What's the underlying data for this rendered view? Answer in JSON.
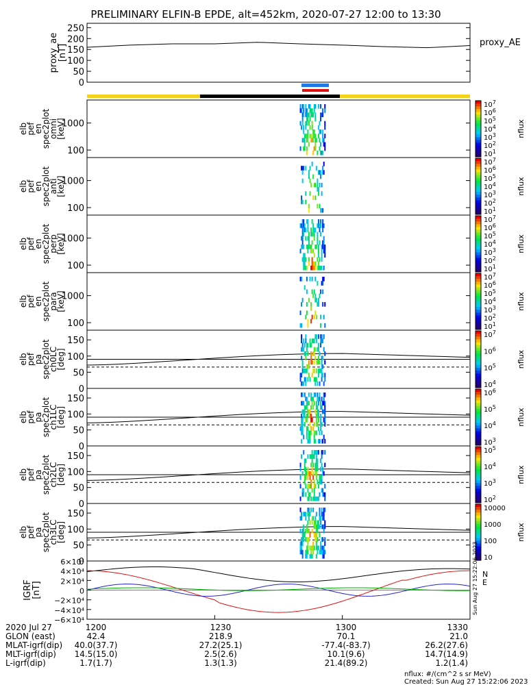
{
  "title": "PRELIMINARY ELFIN-B EPDE, alt=452km, 2020-07-27 12:00 to 13:30",
  "time_axis": {
    "ticks": [
      "1200",
      "1230",
      "1300",
      "1330"
    ],
    "rows": [
      {
        "label": "2020 Jul 27",
        "values": [
          "1200",
          "1230",
          "1300",
          "1330"
        ]
      },
      {
        "label": "GLON (east)",
        "values": [
          "42.4",
          "218.9",
          "70.1",
          "21.0"
        ]
      },
      {
        "label": "MLAT-igrf(dip)",
        "values": [
          "40.0(37.7)",
          "27.2(25.1)",
          "-77.4(-83.7)",
          "26.2(27.6)"
        ]
      },
      {
        "label": "MLT-igrf(dip)",
        "values": [
          "14.5(15.0)",
          "2.5(2.6)",
          "10.1(9.6)",
          "14.7(14.9)"
        ]
      },
      {
        "label": "L-igrf(dip)",
        "values": [
          "1.7(1.7)",
          "1.3(1.3)",
          "21.4(89.2)",
          "1.2(1.4)"
        ]
      }
    ]
  },
  "footer": {
    "units": "nflux: #/(cm^2 s sr MeV)",
    "created": "Created: Sun Aug 27 15:22:06 2023",
    "side_stamp": "Sun Aug 27 15:22:06 2023"
  },
  "colors": {
    "yellow": "#f4d21a",
    "black": "#000000",
    "blue": "#1e78e6",
    "red": "#e01010",
    "green": "#00b000",
    "trace_blue": "#2020d0"
  },
  "chart_data": [
    {
      "type": "line",
      "ylabel": [
        "proxy_ae",
        "[nT]"
      ],
      "legend": "proxy_AE",
      "yticks": [
        "250",
        "200",
        "150",
        "100",
        "50",
        "0"
      ],
      "ylim": [
        0,
        270
      ],
      "x_minutes": [
        0,
        10,
        20,
        30,
        40,
        50,
        60,
        70,
        80,
        90
      ],
      "values": [
        160,
        170,
        176,
        176,
        183,
        176,
        170,
        163,
        158,
        168
      ]
    },
    {
      "type": "heatmap",
      "ylabel": [
        "elb",
        "pef",
        "en",
        "spec2plot",
        "omni",
        "[keV]"
      ],
      "yticks": [
        "1000",
        "100"
      ],
      "colorbar_label": "nflux",
      "colorbar_ticks": [
        "10^7",
        "10^6",
        "10^5",
        "10^4",
        "10^3",
        "10^2",
        "10^1"
      ],
      "active_minutes": [
        50,
        56
      ]
    },
    {
      "type": "heatmap",
      "ylabel": [
        "elb",
        "pef",
        "en",
        "spec2plot",
        "anti",
        "[keV]"
      ],
      "yticks": [
        "1000",
        "100"
      ],
      "colorbar_label": "nflux",
      "colorbar_ticks": [
        "10^7",
        "10^6",
        "10^5",
        "10^4",
        "10^3",
        "10^2",
        "10^1"
      ],
      "active_minutes": [
        50,
        56
      ]
    },
    {
      "type": "heatmap",
      "ylabel": [
        "elb",
        "pef",
        "en",
        "spec2plot",
        "perp",
        "[keV]"
      ],
      "yticks": [
        "1000",
        "100"
      ],
      "colorbar_label": "nflux",
      "colorbar_ticks": [
        "10^7",
        "10^6",
        "10^5",
        "10^4",
        "10^3",
        "10^2",
        "10^1"
      ],
      "active_minutes": [
        50,
        56
      ]
    },
    {
      "type": "heatmap",
      "ylabel": [
        "elb",
        "pef",
        "en",
        "spec2plot",
        "para",
        "[keV]"
      ],
      "yticks": [
        "1000",
        "100"
      ],
      "colorbar_label": "nflux",
      "colorbar_ticks": [
        "10^7",
        "10^6",
        "10^5",
        "10^4",
        "10^3",
        "10^2",
        "10^1"
      ],
      "active_minutes": [
        50,
        56
      ]
    },
    {
      "type": "heatmap",
      "ylabel": [
        "elb",
        "pef",
        "pa",
        "spec2plot",
        "ch0LC",
        "[deg]"
      ],
      "yticks": [
        "150",
        "100",
        "50",
        "0"
      ],
      "ylim": [
        0,
        180
      ],
      "colorbar_label": "nflux",
      "colorbar_ticks": [
        "10^7",
        "10^6",
        "10^5",
        "10^4"
      ],
      "active_minutes": [
        50,
        56
      ]
    },
    {
      "type": "heatmap",
      "ylabel": [
        "elb",
        "pef",
        "pa",
        "spec2plot",
        "ch1LC",
        "[deg]"
      ],
      "yticks": [
        "150",
        "100",
        "50",
        "0"
      ],
      "ylim": [
        0,
        180
      ],
      "colorbar_label": "nflux",
      "colorbar_ticks": [
        "10^6",
        "10^5",
        "10^4",
        "10^3"
      ],
      "active_minutes": [
        50,
        56
      ]
    },
    {
      "type": "heatmap",
      "ylabel": [
        "elb",
        "pef",
        "pa",
        "spec2plot",
        "ch2LC",
        "[deg]"
      ],
      "yticks": [
        "150",
        "100",
        "50",
        "0"
      ],
      "ylim": [
        0,
        180
      ],
      "colorbar_label": "nflux",
      "colorbar_ticks": [
        "10^5",
        "10^4",
        "10^3",
        "10^2"
      ],
      "active_minutes": [
        50,
        56
      ]
    },
    {
      "type": "heatmap",
      "ylabel": [
        "elb",
        "pef",
        "pa",
        "spec2plot",
        "ch3LC",
        "[deg]"
      ],
      "yticks": [
        "150",
        "100",
        "50",
        "0"
      ],
      "ylim": [
        0,
        180
      ],
      "colorbar_label": "nflux",
      "colorbar_ticks": [
        "10000",
        "1000",
        "100",
        "10"
      ],
      "active_minutes": [
        50,
        56
      ]
    },
    {
      "type": "line",
      "ylabel": [
        "IGRF",
        "[nT]"
      ],
      "yticks": [
        "6×10⁴",
        "4×10⁴",
        "2×10⁴",
        "0",
        "−2×10⁴",
        "−4×10⁴",
        "−6×10⁴"
      ],
      "ylim": [
        -60000,
        60000
      ],
      "legend": [
        "N",
        "E"
      ],
      "x_minutes": [
        0,
        15,
        30,
        45,
        60,
        75,
        90
      ]
    }
  ]
}
